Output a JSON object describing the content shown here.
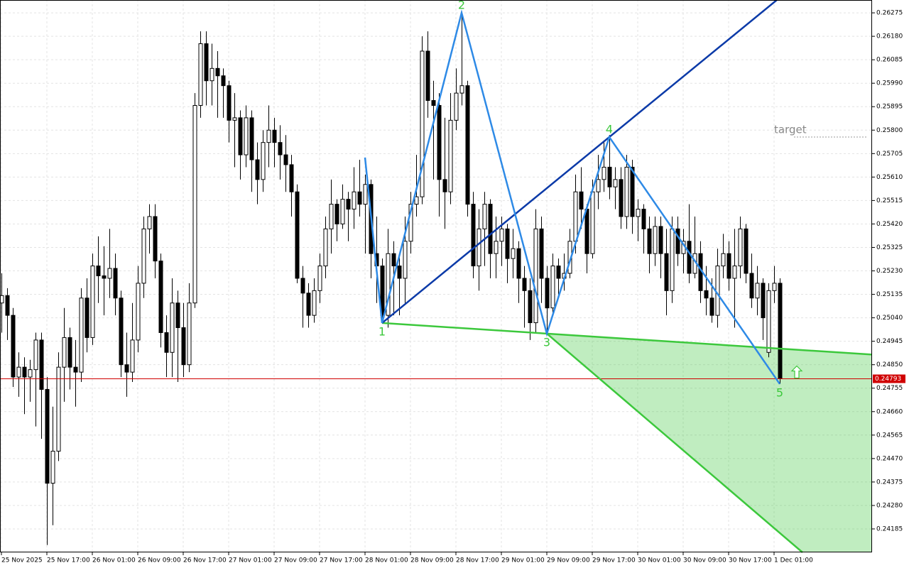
{
  "chart_data": {
    "type": "candlestick",
    "xlim": [
      -0.25,
      153.25
    ],
    "ylim": [
      0.2409,
      0.26327
    ],
    "grid": true,
    "up_color": "#ffffff",
    "down_color": "#000000",
    "yticks": [
      0.26275,
      {
        "value": 0.2618,
        "label": "0.26180"
      },
      0.26085,
      {
        "value": 0.2599,
        "label": "0.25990"
      },
      0.25895,
      {
        "value": 0.258,
        "label": "0.25800"
      },
      0.25705,
      {
        "value": 0.2561,
        "label": "0.25610"
      },
      0.25515,
      {
        "value": 0.2542,
        "label": "0.25420"
      },
      0.25325,
      {
        "value": 0.2523,
        "label": "0.25230"
      },
      0.25135,
      {
        "value": 0.2504,
        "label": "0.25040"
      },
      0.24945,
      {
        "value": 0.2485,
        "label": "0.24850"
      },
      0.24755,
      {
        "value": 0.2466,
        "label": "0.24660"
      },
      0.24565,
      {
        "value": 0.2447,
        "label": "0.24470"
      },
      0.24375,
      {
        "value": 0.2428,
        "label": "0.24280"
      },
      0.24185
    ],
    "xticks": [
      {
        "value": 0,
        "label": "25 Nov 2025"
      },
      {
        "value": 8,
        "label": "25 Nov 17:00"
      },
      {
        "value": 16,
        "label": "26 Nov 01:00"
      },
      {
        "value": 24,
        "label": "26 Nov 09:00"
      },
      {
        "value": 32,
        "label": "26 Nov 17:00"
      },
      {
        "value": 40,
        "label": "27 Nov 01:00"
      },
      {
        "value": 48,
        "label": "27 Nov 09:00"
      },
      {
        "value": 56,
        "label": "27 Nov 17:00"
      },
      {
        "value": 64,
        "label": "28 Nov 01:00"
      },
      {
        "value": 72,
        "label": "28 Nov 09:00"
      },
      {
        "value": 80,
        "label": "28 Nov 17:00"
      },
      {
        "value": 88,
        "label": "29 Nov 01:00"
      },
      {
        "value": 96,
        "label": "29 Nov 09:00"
      },
      {
        "value": 104,
        "label": "29 Nov 17:00"
      },
      {
        "value": 112,
        "label": "30 Nov 01:00"
      },
      {
        "value": 120,
        "label": "30 Nov 09:00"
      },
      {
        "value": 128,
        "label": "30 Nov 17:00"
      },
      {
        "value": 136,
        "label": "1 Dec 01:00"
      }
    ],
    "current_price": 0.24793,
    "ohlc": [
      [
        0.251,
        0.2522,
        0.2498,
        0.2513
      ],
      [
        0.2513,
        0.2516,
        0.2495,
        0.2505
      ],
      [
        0.2505,
        0.2508,
        0.2476,
        0.248
      ],
      [
        0.248,
        0.249,
        0.2472,
        0.2484
      ],
      [
        0.2484,
        0.2488,
        0.2465,
        0.248
      ],
      [
        0.248,
        0.2487,
        0.247,
        0.2483
      ],
      [
        0.2483,
        0.2498,
        0.246,
        0.2495
      ],
      [
        0.2495,
        0.2498,
        0.2455,
        0.2475
      ],
      [
        0.2475,
        0.248,
        0.2412,
        0.2437
      ],
      [
        0.2437,
        0.2468,
        0.242,
        0.245
      ],
      [
        0.245,
        0.249,
        0.2446,
        0.2484
      ],
      [
        0.2484,
        0.2508,
        0.247,
        0.2496
      ],
      [
        0.2496,
        0.25,
        0.2475,
        0.2484
      ],
      [
        0.2484,
        0.2495,
        0.2468,
        0.2482
      ],
      [
        0.2482,
        0.2516,
        0.2478,
        0.2512
      ],
      [
        0.2512,
        0.252,
        0.249,
        0.2496
      ],
      [
        0.2496,
        0.253,
        0.2493,
        0.2525
      ],
      [
        0.2525,
        0.2537,
        0.251,
        0.2521
      ],
      [
        0.2521,
        0.2533,
        0.2505,
        0.252
      ],
      [
        0.252,
        0.254,
        0.2512,
        0.2524
      ],
      [
        0.2524,
        0.253,
        0.2505,
        0.2512
      ],
      [
        0.2512,
        0.2515,
        0.248,
        0.2485
      ],
      [
        0.2485,
        0.2498,
        0.2472,
        0.2482
      ],
      [
        0.2482,
        0.251,
        0.2478,
        0.2495
      ],
      [
        0.2495,
        0.2525,
        0.249,
        0.2518
      ],
      [
        0.2518,
        0.2545,
        0.2512,
        0.254
      ],
      [
        0.254,
        0.255,
        0.253,
        0.2545
      ],
      [
        0.2545,
        0.255,
        0.252,
        0.2527
      ],
      [
        0.2527,
        0.253,
        0.2492,
        0.2498
      ],
      [
        0.2498,
        0.2505,
        0.248,
        0.249
      ],
      [
        0.249,
        0.252,
        0.248,
        0.251
      ],
      [
        0.251,
        0.2515,
        0.2478,
        0.25
      ],
      [
        0.25,
        0.251,
        0.248,
        0.2485
      ],
      [
        0.2485,
        0.2518,
        0.2482,
        0.251
      ],
      [
        0.251,
        0.2595,
        0.2508,
        0.259
      ],
      [
        0.259,
        0.262,
        0.2585,
        0.2615
      ],
      [
        0.2615,
        0.262,
        0.259,
        0.26
      ],
      [
        0.26,
        0.2615,
        0.259,
        0.2605
      ],
      [
        0.2605,
        0.2612,
        0.2585,
        0.2602
      ],
      [
        0.2602,
        0.2605,
        0.2585,
        0.2598
      ],
      [
        0.2598,
        0.26,
        0.2575,
        0.2584
      ],
      [
        0.2584,
        0.2595,
        0.2565,
        0.2585
      ],
      [
        0.2585,
        0.2588,
        0.256,
        0.257
      ],
      [
        0.257,
        0.259,
        0.2565,
        0.2585
      ],
      [
        0.2585,
        0.2588,
        0.2555,
        0.2568
      ],
      [
        0.2568,
        0.2575,
        0.255,
        0.256
      ],
      [
        0.256,
        0.258,
        0.2555,
        0.2575
      ],
      [
        0.2575,
        0.259,
        0.2565,
        0.258
      ],
      [
        0.258,
        0.2585,
        0.2565,
        0.2575
      ],
      [
        0.2575,
        0.2582,
        0.256,
        0.257
      ],
      [
        0.257,
        0.2578,
        0.2555,
        0.2566
      ],
      [
        0.2566,
        0.257,
        0.2545,
        0.2555
      ],
      [
        0.2555,
        0.2558,
        0.2518,
        0.252
      ],
      [
        0.252,
        0.2525,
        0.25,
        0.2514
      ],
      [
        0.2514,
        0.2518,
        0.25,
        0.2505
      ],
      [
        0.2505,
        0.252,
        0.2502,
        0.2515
      ],
      [
        0.2515,
        0.253,
        0.251,
        0.2525
      ],
      [
        0.2525,
        0.2545,
        0.252,
        0.254
      ],
      [
        0.254,
        0.256,
        0.253,
        0.255
      ],
      [
        0.255,
        0.2552,
        0.2535,
        0.2542
      ],
      [
        0.2542,
        0.2558,
        0.254,
        0.2552
      ],
      [
        0.2552,
        0.2555,
        0.2535,
        0.2548
      ],
      [
        0.2548,
        0.2565,
        0.254,
        0.2555
      ],
      [
        0.2555,
        0.2568,
        0.2545,
        0.255
      ],
      [
        0.255,
        0.2562,
        0.253,
        0.2558
      ],
      [
        0.2558,
        0.256,
        0.252,
        0.253
      ],
      [
        0.253,
        0.2545,
        0.251,
        0.2525
      ],
      [
        0.2525,
        0.2528,
        0.2502,
        0.2505
      ],
      [
        0.2505,
        0.254,
        0.25,
        0.253
      ],
      [
        0.253,
        0.2535,
        0.2505,
        0.2525
      ],
      [
        0.2525,
        0.253,
        0.2505,
        0.252
      ],
      [
        0.252,
        0.2545,
        0.251,
        0.2535
      ],
      [
        0.2535,
        0.2555,
        0.253,
        0.255
      ],
      [
        0.255,
        0.257,
        0.2545,
        0.2553
      ],
      [
        0.2553,
        0.2618,
        0.255,
        0.2612
      ],
      [
        0.2612,
        0.262,
        0.2585,
        0.2592
      ],
      [
        0.2592,
        0.26,
        0.256,
        0.259
      ],
      [
        0.259,
        0.2595,
        0.2545,
        0.256
      ],
      [
        0.256,
        0.2585,
        0.254,
        0.2555
      ],
      [
        0.2555,
        0.2595,
        0.255,
        0.2584
      ],
      [
        0.2584,
        0.2605,
        0.258,
        0.2595
      ],
      [
        0.2595,
        0.2628,
        0.259,
        0.2598
      ],
      [
        0.2598,
        0.26,
        0.2545,
        0.255
      ],
      [
        0.255,
        0.2555,
        0.252,
        0.2525
      ],
      [
        0.2525,
        0.2548,
        0.2515,
        0.254
      ],
      [
        0.254,
        0.2555,
        0.2525,
        0.255
      ],
      [
        0.255,
        0.2552,
        0.252,
        0.253
      ],
      [
        0.253,
        0.2545,
        0.252,
        0.2535
      ],
      [
        0.2535,
        0.2545,
        0.2525,
        0.254
      ],
      [
        0.254,
        0.2542,
        0.2518,
        0.2528
      ],
      [
        0.2528,
        0.254,
        0.252,
        0.2532
      ],
      [
        0.2532,
        0.2535,
        0.251,
        0.252
      ],
      [
        0.252,
        0.2525,
        0.25,
        0.2515
      ],
      [
        0.2515,
        0.252,
        0.2495,
        0.2502
      ],
      [
        0.2502,
        0.2548,
        0.2498,
        0.254
      ],
      [
        0.254,
        0.2545,
        0.251,
        0.252
      ],
      [
        0.252,
        0.2525,
        0.2498,
        0.2508
      ],
      [
        0.2508,
        0.253,
        0.2505,
        0.2525
      ],
      [
        0.2525,
        0.2528,
        0.2512,
        0.252
      ],
      [
        0.252,
        0.253,
        0.2515,
        0.2522
      ],
      [
        0.2522,
        0.254,
        0.252,
        0.2535
      ],
      [
        0.2535,
        0.2562,
        0.253,
        0.2555
      ],
      [
        0.2555,
        0.2565,
        0.254,
        0.2548
      ],
      [
        0.2548,
        0.255,
        0.2522,
        0.253
      ],
      [
        0.253,
        0.256,
        0.2528,
        0.2555
      ],
      [
        0.2555,
        0.257,
        0.2548,
        0.256
      ],
      [
        0.256,
        0.2575,
        0.2555,
        0.2565
      ],
      [
        0.2565,
        0.2578,
        0.2552,
        0.2557
      ],
      [
        0.2557,
        0.2565,
        0.2548,
        0.256
      ],
      [
        0.256,
        0.2565,
        0.254,
        0.2545
      ],
      [
        0.2545,
        0.257,
        0.254,
        0.2565
      ],
      [
        0.2565,
        0.2568,
        0.2538,
        0.2545
      ],
      [
        0.2545,
        0.2552,
        0.2535,
        0.2548
      ],
      [
        0.2548,
        0.255,
        0.253,
        0.254
      ],
      [
        0.254,
        0.2545,
        0.2522,
        0.253
      ],
      [
        0.253,
        0.2545,
        0.2525,
        0.2541
      ],
      [
        0.2541,
        0.2545,
        0.252,
        0.253
      ],
      [
        0.253,
        0.254,
        0.2505,
        0.2515
      ],
      [
        0.2515,
        0.2545,
        0.251,
        0.254
      ],
      [
        0.254,
        0.2545,
        0.2525,
        0.253
      ],
      [
        0.253,
        0.254,
        0.2522,
        0.2535
      ],
      [
        0.2535,
        0.255,
        0.2518,
        0.2522
      ],
      [
        0.2522,
        0.2545,
        0.252,
        0.253
      ],
      [
        0.253,
        0.2535,
        0.251,
        0.2515
      ],
      [
        0.2515,
        0.2525,
        0.2505,
        0.2512
      ],
      [
        0.2512,
        0.252,
        0.2502,
        0.2505
      ],
      [
        0.2505,
        0.2532,
        0.25,
        0.2525
      ],
      [
        0.2525,
        0.2538,
        0.252,
        0.253
      ],
      [
        0.253,
        0.2535,
        0.2515,
        0.252
      ],
      [
        0.252,
        0.254,
        0.25,
        0.2525
      ],
      [
        0.2525,
        0.2545,
        0.252,
        0.254
      ],
      [
        0.254,
        0.2542,
        0.2518,
        0.2522
      ],
      [
        0.2522,
        0.253,
        0.2508,
        0.2512
      ],
      [
        0.2512,
        0.2525,
        0.2505,
        0.2518
      ],
      [
        0.2518,
        0.252,
        0.2495,
        0.2504
      ],
      [
        0.249,
        0.2518,
        0.2488,
        0.2515
      ],
      [
        0.2515,
        0.2525,
        0.251,
        0.2518
      ],
      [
        0.2518,
        0.252,
        0.24772,
        0.24793
      ]
    ],
    "pattern": {
      "start": {
        "index": 64,
        "price": 0.25689
      },
      "points": [
        {
          "label": "1",
          "index": 67,
          "price": 0.25019
        },
        {
          "label": "2",
          "index": 81,
          "price": 0.26275
        },
        {
          "label": "3",
          "index": 96,
          "price": 0.24976
        },
        {
          "label": "4",
          "index": 107,
          "price": 0.25772
        },
        {
          "label": "5",
          "index": 137,
          "price": 0.24772
        }
      ],
      "projection_end": {
        "index": 141,
        "price": 0.2409
      },
      "zigzag_color": "#2e8ae6",
      "target_line_color": "#0b3aa8",
      "channel_color": "#3cc83c",
      "target": {
        "label": "target",
        "price": 0.25772
      }
    }
  }
}
